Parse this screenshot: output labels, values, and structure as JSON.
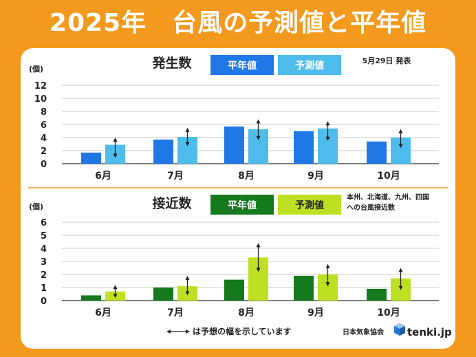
{
  "page_title": "2025年　台風の予測値と平年値",
  "release_note": "5月29日 発表",
  "note": "は予想の幅を示しています",
  "credit_jma": "日本気象協会",
  "credit_brand": "tenki.jp",
  "colors": {
    "background": "#f39a1e",
    "gen_normal": "#1f78e6",
    "gen_forecast": "#4fbdeb",
    "app_normal": "#147a1d",
    "app_forecast": "#bde022"
  },
  "chart_data": [
    {
      "type": "bar",
      "title": "発生数",
      "ylabel": "(個)",
      "ylim": [
        0,
        12
      ],
      "yticks": [
        0,
        2,
        4,
        6,
        8,
        10,
        12
      ],
      "categories": [
        "6月",
        "7月",
        "8月",
        "9月",
        "10月"
      ],
      "series": [
        {
          "name": "平年値",
          "values": [
            1.7,
            3.7,
            5.7,
            5.0,
            3.4
          ]
        },
        {
          "name": "予測値",
          "values": [
            2.9,
            4.1,
            5.3,
            5.4,
            4.0
          ],
          "range_low": [
            0.9,
            2.7,
            3.6,
            3.5,
            2.4
          ],
          "range_high": [
            4.0,
            5.5,
            6.8,
            6.5,
            5.3
          ]
        }
      ]
    },
    {
      "type": "bar",
      "title": "接近数",
      "subtitle": "本州、北海道、九州、四国\nへの台風接近数",
      "ylabel": "(個)",
      "ylim": [
        0,
        6
      ],
      "yticks": [
        0,
        1,
        2,
        3,
        4,
        5,
        6
      ],
      "categories": [
        "6月",
        "7月",
        "8月",
        "9月",
        "10月"
      ],
      "series": [
        {
          "name": "平年値",
          "values": [
            0.4,
            1.0,
            1.6,
            1.9,
            0.9
          ]
        },
        {
          "name": "予測値",
          "values": [
            0.7,
            1.1,
            3.3,
            2.0,
            1.7
          ],
          "range_low": [
            0.2,
            0.4,
            2.2,
            1.1,
            0.8
          ],
          "range_high": [
            1.2,
            1.9,
            4.4,
            2.8,
            2.5
          ]
        }
      ]
    }
  ]
}
